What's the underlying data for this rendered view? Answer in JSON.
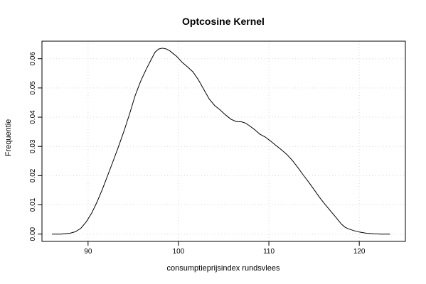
{
  "chart_data": {
    "type": "line",
    "title": "Optcosine Kernel",
    "xlabel": "consumptieprijsindex rundsvlees",
    "ylabel": "Frequentie",
    "xlim": [
      84.9,
      125.1
    ],
    "ylim": [
      -0.0025,
      0.066
    ],
    "x_ticks": [
      90,
      100,
      110,
      120
    ],
    "x_tick_labels": [
      "90",
      "100",
      "110",
      "120"
    ],
    "y_ticks": [
      0.0,
      0.01,
      0.02,
      0.03,
      0.04,
      0.05,
      0.06
    ],
    "y_tick_labels": [
      "0.00",
      "0.01",
      "0.02",
      "0.03",
      "0.04",
      "0.05",
      "0.06"
    ],
    "grid": true,
    "series": [
      {
        "x": [
          86.0,
          87.0,
          88.0,
          88.6,
          89.2,
          89.8,
          90.4,
          91.0,
          91.6,
          92.2,
          92.8,
          93.4,
          94.0,
          94.6,
          95.2,
          95.8,
          96.4,
          97.0,
          97.4,
          97.8,
          98.2,
          98.6,
          99.0,
          99.4,
          99.8,
          100.4,
          101.0,
          101.6,
          102.2,
          102.8,
          103.4,
          104.0,
          104.6,
          105.2,
          105.8,
          106.4,
          107.0,
          107.4,
          107.8,
          108.4,
          109.0,
          109.6,
          110.2,
          110.8,
          111.4,
          112.0,
          112.6,
          113.2,
          113.8,
          114.4,
          115.0,
          115.6,
          116.2,
          116.8,
          117.4,
          118.0,
          118.4,
          118.8,
          119.4,
          120.0,
          120.8,
          121.6,
          122.4,
          123.4
        ],
        "y": [
          0.0,
          0.0,
          0.0003,
          0.0008,
          0.002,
          0.0042,
          0.0072,
          0.011,
          0.0155,
          0.0203,
          0.0252,
          0.0302,
          0.0355,
          0.0412,
          0.0473,
          0.0522,
          0.0562,
          0.0598,
          0.0622,
          0.0633,
          0.0636,
          0.0634,
          0.0628,
          0.0618,
          0.0608,
          0.0588,
          0.0572,
          0.0555,
          0.0528,
          0.0495,
          0.0462,
          0.044,
          0.0425,
          0.0408,
          0.0393,
          0.0385,
          0.0384,
          0.038,
          0.0372,
          0.0358,
          0.0342,
          0.0332,
          0.0318,
          0.0303,
          0.0288,
          0.0272,
          0.0252,
          0.0228,
          0.0202,
          0.0178,
          0.0152,
          0.0126,
          0.0102,
          0.008,
          0.0058,
          0.0035,
          0.0024,
          0.0018,
          0.0012,
          0.0007,
          0.0003,
          0.0001,
          0.0,
          0.0
        ]
      }
    ]
  }
}
